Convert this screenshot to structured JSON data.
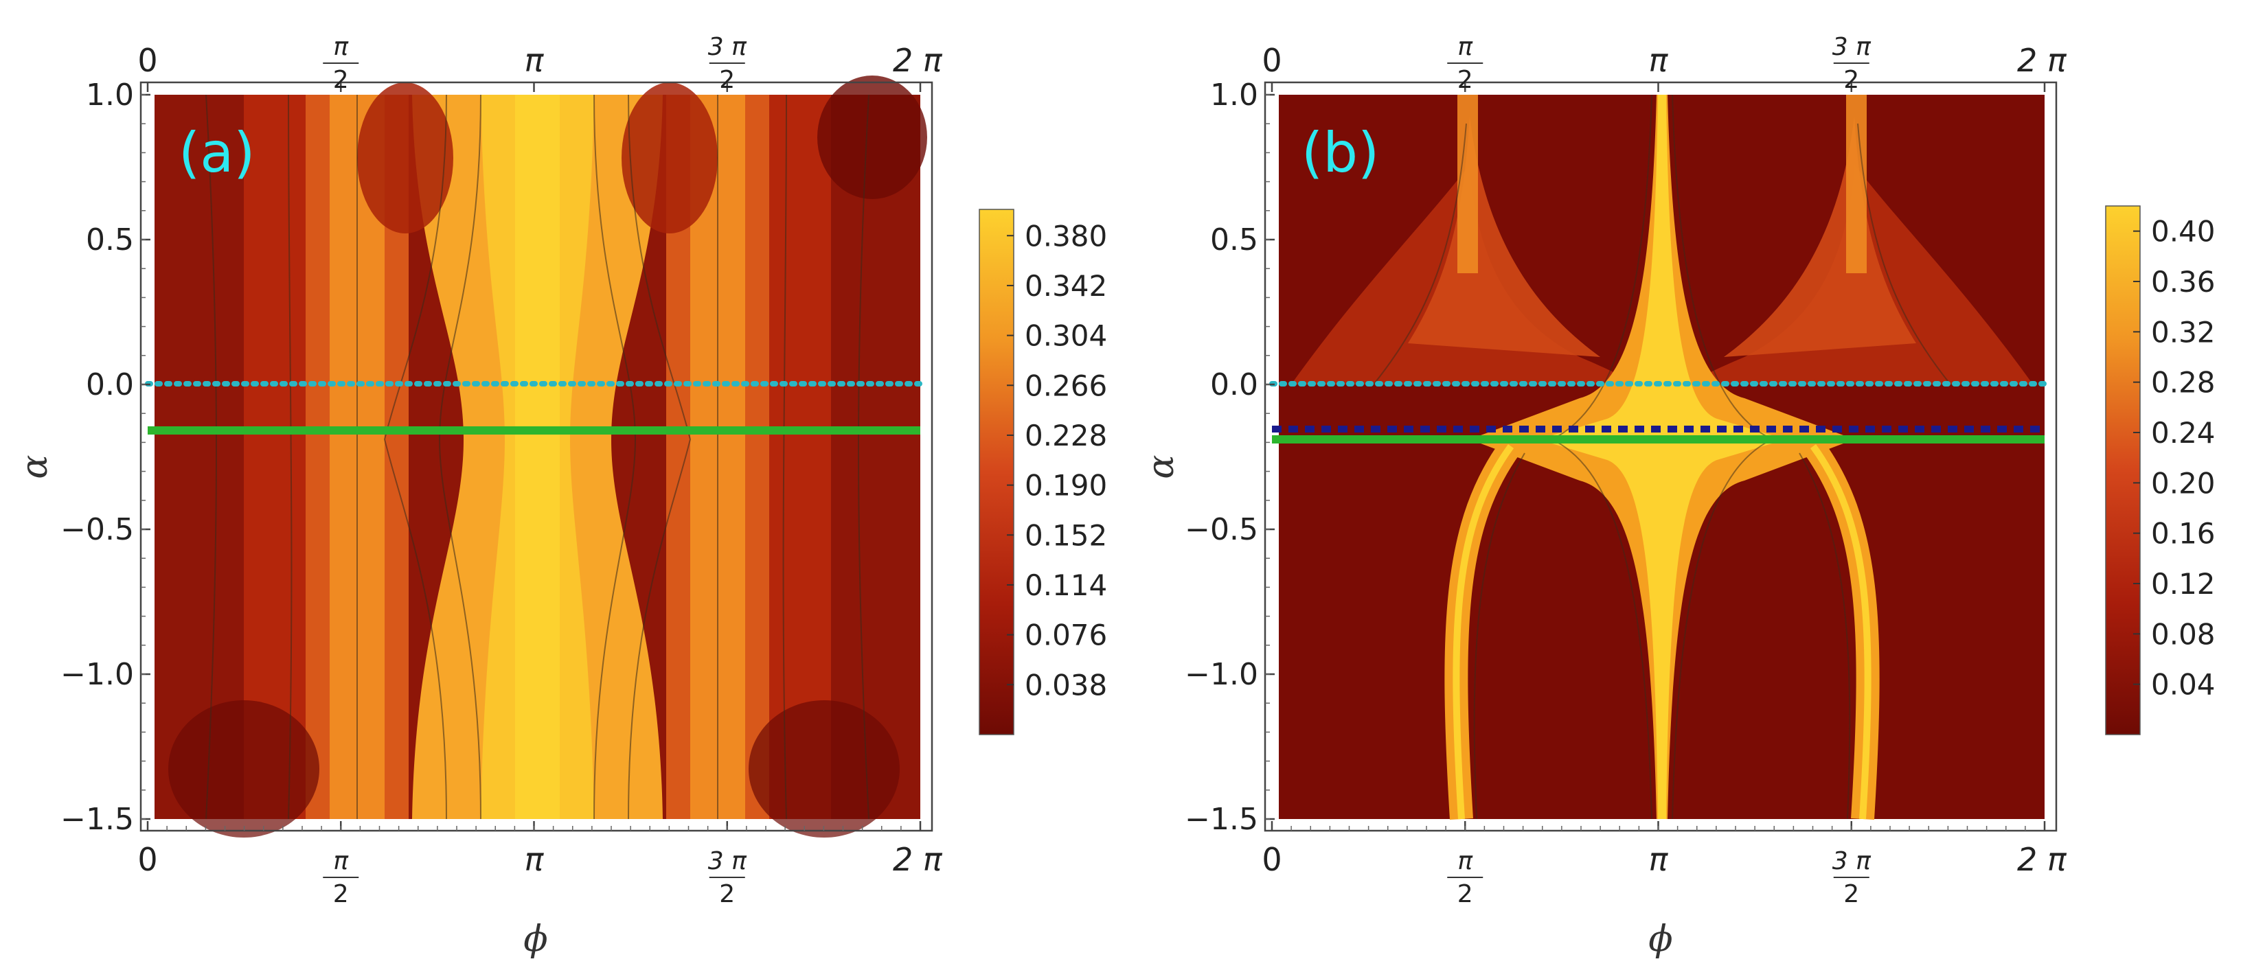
{
  "chart_data": [
    {
      "type": "heatmap",
      "panel_label": "(a)",
      "xlabel": "ϕ",
      "ylabel": "α",
      "xlim": [
        0,
        6.2832
      ],
      "ylim": [
        -1.5,
        1.0
      ],
      "x_ticks": [
        {
          "value": 0,
          "label": "0"
        },
        {
          "value": 1.5708,
          "label": "π/2",
          "num": "π",
          "den": "2"
        },
        {
          "value": 3.1416,
          "label": "π"
        },
        {
          "value": 4.7124,
          "label": "3π/2",
          "num": "3 π",
          "den": "2"
        },
        {
          "value": 6.2832,
          "label": "2 π"
        }
      ],
      "y_ticks": [
        1.0,
        0.5,
        0.0,
        -0.5,
        -1.0,
        -1.5
      ],
      "y_tick_labels": [
        "1.0",
        "0.5",
        "0.0",
        "−0.5",
        "−1.0",
        "−1.5"
      ],
      "colorbar": {
        "min": 0,
        "max": 0.4,
        "ticks": [
          0.38,
          0.342,
          0.304,
          0.266,
          0.228,
          0.19,
          0.152,
          0.114,
          0.076,
          0.038
        ],
        "tick_labels": [
          "0.380",
          "0.342",
          "0.304",
          "0.266",
          "0.228",
          "0.190",
          "0.152",
          "0.114",
          "0.076",
          "0.038"
        ]
      },
      "lines": [
        {
          "name": "dotted-cyan",
          "alpha": 0.0,
          "color": "#2ab7c4",
          "style": "dotted"
        },
        {
          "name": "solid-green",
          "alpha": -0.16,
          "color": "#2db52d",
          "style": "solid"
        }
      ]
    },
    {
      "type": "heatmap",
      "panel_label": "(b)",
      "xlabel": "ϕ",
      "ylabel": "α",
      "xlim": [
        0,
        6.2832
      ],
      "ylim": [
        -1.5,
        1.0
      ],
      "x_ticks": [
        {
          "value": 0,
          "label": "0"
        },
        {
          "value": 1.5708,
          "label": "π/2",
          "num": "π",
          "den": "2"
        },
        {
          "value": 3.1416,
          "label": "π"
        },
        {
          "value": 4.7124,
          "label": "3π/2",
          "num": "3 π",
          "den": "2"
        },
        {
          "value": 6.2832,
          "label": "2 π"
        }
      ],
      "y_ticks": [
        1.0,
        0.5,
        0.0,
        -0.5,
        -1.0,
        -1.5
      ],
      "y_tick_labels": [
        "1.0",
        "0.5",
        "0.0",
        "−0.5",
        "−1.0",
        "−1.5"
      ],
      "colorbar": {
        "min": 0,
        "max": 0.42,
        "ticks": [
          0.4,
          0.36,
          0.32,
          0.28,
          0.24,
          0.2,
          0.16,
          0.12,
          0.08,
          0.04
        ],
        "tick_labels": [
          "0.40",
          "0.36",
          "0.32",
          "0.28",
          "0.24",
          "0.20",
          "0.16",
          "0.12",
          "0.08",
          "0.04"
        ]
      },
      "lines": [
        {
          "name": "dotted-cyan",
          "alpha": 0.0,
          "color": "#2ab7c4",
          "style": "dotted"
        },
        {
          "name": "dashed-navy",
          "alpha": -0.16,
          "color": "#1a1a8c",
          "style": "dashed"
        },
        {
          "name": "solid-green",
          "alpha": -0.18,
          "color": "#2db52d",
          "style": "solid"
        }
      ]
    }
  ],
  "colors": {
    "low": "#7a0a05",
    "mid": "#d2451c",
    "high": "#fdcf2b",
    "panel_label": "#2ee8f0"
  }
}
